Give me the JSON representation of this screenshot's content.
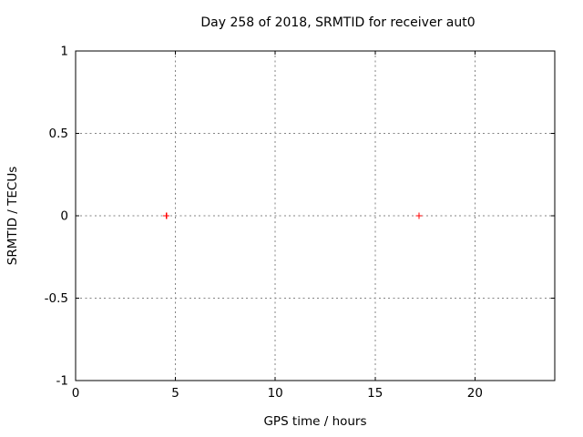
{
  "chart_data": {
    "type": "scatter",
    "title": "Day 258 of 2018, SRMTID for receiver aut0",
    "xlabel": "GPS time / hours",
    "ylabel": "SRMTID / TECUs",
    "xlim": [
      0,
      24
    ],
    "ylim": [
      -1,
      1
    ],
    "grid": true,
    "legend": "none",
    "xticks": [
      {
        "value": 0,
        "label": "0"
      },
      {
        "value": 5,
        "label": "5"
      },
      {
        "value": 10,
        "label": "10"
      },
      {
        "value": 15,
        "label": "15"
      },
      {
        "value": 20,
        "label": "20"
      }
    ],
    "yticks": [
      {
        "value": -1,
        "label": "-1"
      },
      {
        "value": -0.5,
        "label": "-0.5"
      },
      {
        "value": 0,
        "label": "0"
      },
      {
        "value": 0.5,
        "label": "0.5"
      },
      {
        "value": 1,
        "label": "1"
      }
    ],
    "series": [
      {
        "name": "SRMTID",
        "marker": "plus",
        "color": "#ff0000",
        "points": [
          {
            "x": 4.55,
            "y": 0.0
          },
          {
            "x": 17.2,
            "y": 0.0
          }
        ]
      }
    ],
    "colors": {
      "background": "#ffffff",
      "axis": "#000000",
      "grid": "#848484",
      "text": "#000000"
    }
  }
}
